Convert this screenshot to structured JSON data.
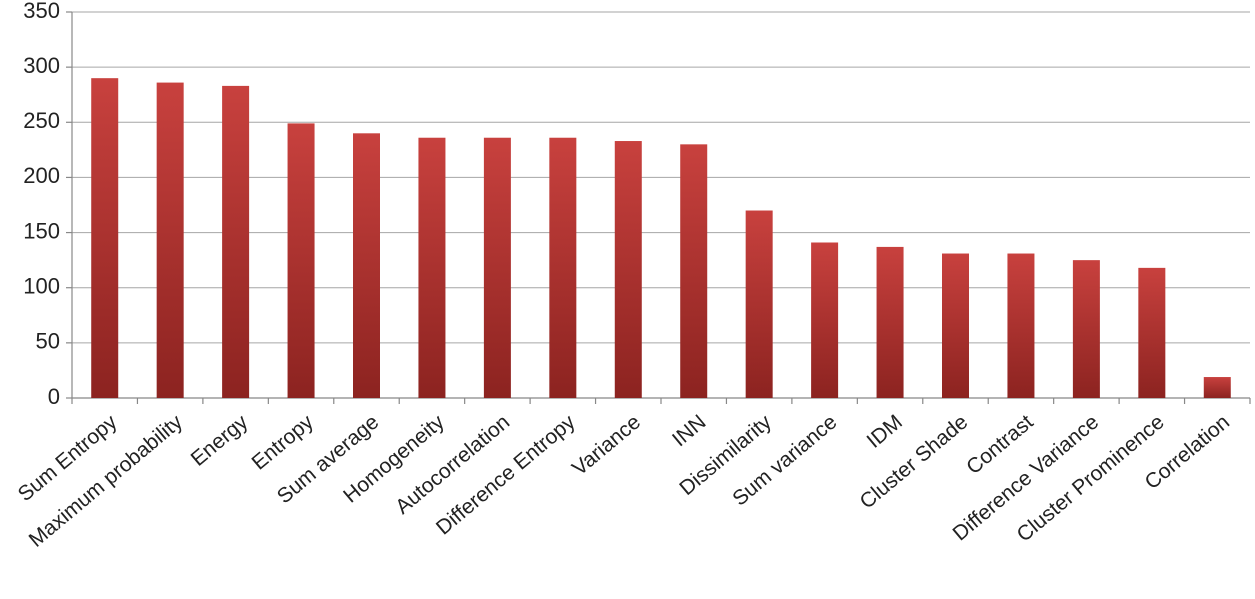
{
  "chart_data": {
    "type": "bar",
    "categories": [
      "Sum Entropy",
      "Maximum probability",
      "Energy",
      "Entropy",
      "Sum average",
      "Homogeneity",
      "Autocorrelation",
      "Difference Entropy",
      "Variance",
      "INN",
      "Dissimilarity",
      "Sum variance",
      "IDM",
      "Cluster Shade",
      "Contrast",
      "Difference Variance",
      "Cluster Prominence",
      "Correlation"
    ],
    "values": [
      290,
      286,
      283,
      249,
      240,
      236,
      236,
      236,
      233,
      230,
      170,
      141,
      137,
      131,
      131,
      125,
      118,
      19
    ],
    "color": "#c3302d",
    "ylim": [
      0,
      350
    ],
    "yticks": [
      0,
      50,
      100,
      150,
      200,
      250,
      300,
      350
    ],
    "grid": true
  }
}
